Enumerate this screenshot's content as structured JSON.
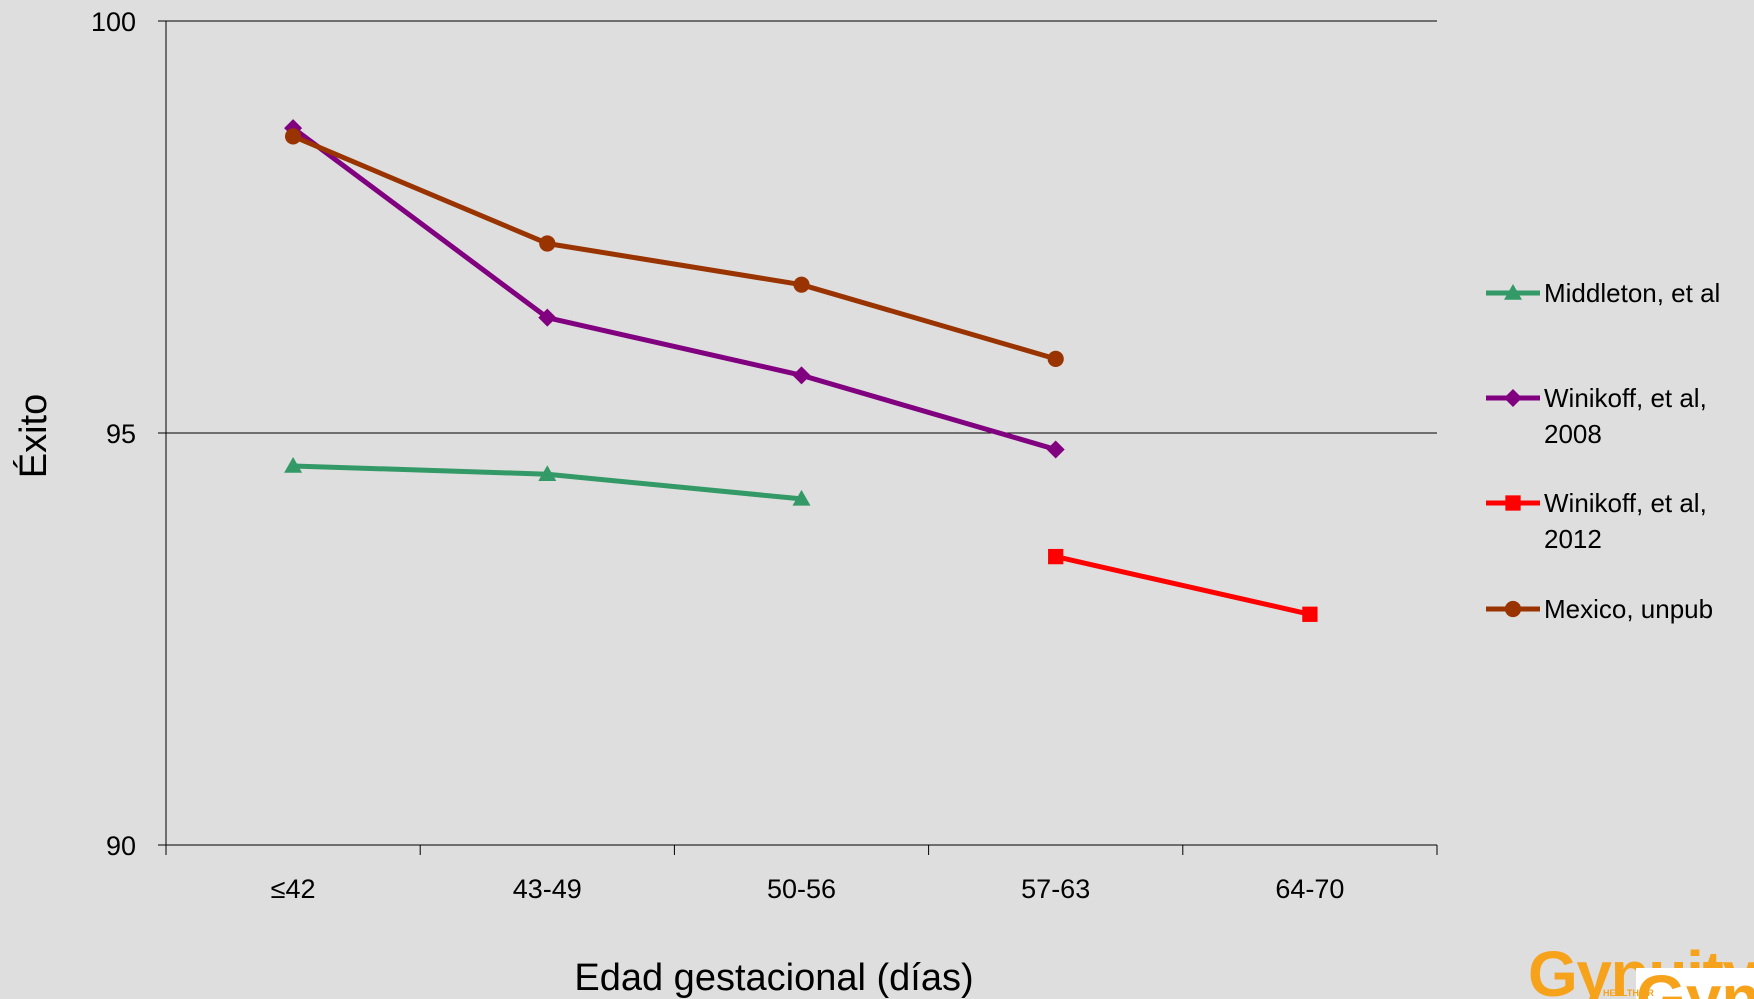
{
  "chart_data": {
    "type": "line",
    "title": "",
    "xlabel": "Edad gestacional (días)",
    "ylabel": "Éxito",
    "categories": [
      "≤42",
      "43-49",
      "50-56",
      "57-63",
      "64-70"
    ],
    "ylim": [
      90,
      100
    ],
    "yticks": [
      "90",
      "95",
      "100"
    ],
    "grid": "horizontal",
    "legend_position": "right",
    "series": [
      {
        "name": "Middleton, et al",
        "lines": [
          "Middleton, et al"
        ],
        "color": "#339966",
        "marker": "triangle",
        "values": [
          94.6,
          94.5,
          94.2,
          null,
          null
        ]
      },
      {
        "name": "Winikoff, et al, 2008",
        "lines": [
          "Winikoff, et al,",
          "2008"
        ],
        "color": "#800080",
        "marker": "diamond",
        "values": [
          98.7,
          96.4,
          95.7,
          94.8,
          null
        ]
      },
      {
        "name": "Winikoff, et al, 2012",
        "lines": [
          "Winikoff, et al,",
          "2012"
        ],
        "color": "#ff0000",
        "marker": "square",
        "values": [
          null,
          null,
          null,
          93.5,
          92.8
        ]
      },
      {
        "name": "Mexico, unpub",
        "lines": [
          "Mexico, unpub"
        ],
        "color": "#993300",
        "marker": "circle",
        "values": [
          98.6,
          97.3,
          96.8,
          95.9,
          null
        ]
      }
    ]
  },
  "logo": {
    "text": "Gynuity",
    "subtext": "HEALTH PR",
    "color": "#f7a21b"
  }
}
